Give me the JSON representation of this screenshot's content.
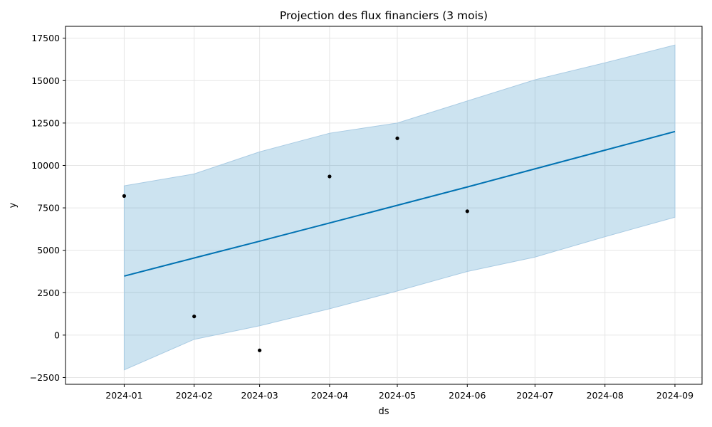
{
  "chart_data": {
    "type": "line",
    "title": "Projection des flux financiers (3 mois)",
    "xlabel": "ds",
    "ylabel": "y",
    "x_ticks": [
      "2024-01",
      "2024-02",
      "2024-03",
      "2024-04",
      "2024-05",
      "2024-06",
      "2024-07",
      "2024-08",
      "2024-09"
    ],
    "y_ticks": [
      "−2500",
      "0",
      "2500",
      "5000",
      "7500",
      "10000",
      "12500",
      "15000",
      "17500"
    ],
    "xlim": [
      "2023-12-06",
      "2024-09-13"
    ],
    "ylim": [
      -2900,
      18200
    ],
    "grid": true,
    "forecast": {
      "x": [
        "2024-01-01",
        "2024-02-01",
        "2024-03-01",
        "2024-04-01",
        "2024-05-01",
        "2024-06-01",
        "2024-07-01",
        "2024-08-01",
        "2024-09-01"
      ],
      "yhat": [
        3480,
        4545,
        5535,
        6610,
        7650,
        8730,
        9800,
        10900,
        12000
      ],
      "yhat_lower": [
        -2050,
        -250,
        550,
        1550,
        2600,
        3750,
        4600,
        5800,
        6950
      ],
      "yhat_upper": [
        8800,
        9500,
        10800,
        11900,
        12500,
        13800,
        15050,
        16050,
        17100
      ]
    },
    "observed": {
      "x": [
        "2024-01-01",
        "2024-02-01",
        "2024-03-01",
        "2024-04-01",
        "2024-05-01",
        "2024-06-01"
      ],
      "y": [
        8200,
        1100,
        -900,
        9350,
        11600,
        7300
      ]
    },
    "colors": {
      "line": "#0072B2",
      "band": "#0072B2",
      "band_edge": "#A9CBE3",
      "points": "#000000",
      "grid": "#E6E6E6",
      "axes": "#000000"
    }
  }
}
